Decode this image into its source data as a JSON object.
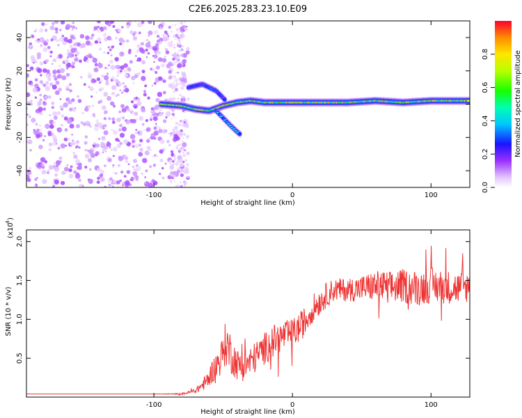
{
  "title": "C2E6.2025.283.23.10.E09",
  "chart_data": [
    {
      "type": "heatmap",
      "xlabel": "Height of straight line (km)",
      "ylabel": "Frequency (Hz)",
      "xlim": [
        -192,
        128
      ],
      "ylim": [
        -50,
        50
      ],
      "x_ticks": [
        -100,
        0,
        100
      ],
      "x_tick_labels": [
        "-100",
        "0",
        "100"
      ],
      "y_ticks": [
        -40,
        -20,
        0,
        20,
        40
      ],
      "y_tick_labels": [
        "-40",
        "-20",
        "0",
        "20",
        "40"
      ],
      "colorbar": {
        "label": "Normalized spectral amplitude",
        "range": [
          0,
          1
        ],
        "ticks": [
          0.0,
          0.2,
          0.4,
          0.6,
          0.8
        ],
        "tick_labels": [
          "0.0",
          "0.2",
          "0.4",
          "0.6",
          "0.8"
        ]
      },
      "features": [
        {
          "name": "noise",
          "x_range": [
            -192,
            -75
          ],
          "freq_range": [
            -50,
            50
          ],
          "amplitude": 0.1
        },
        {
          "name": "main-band",
          "points": [
            [
              -95,
              0
            ],
            [
              -80,
              -1
            ],
            [
              -70,
              -3
            ],
            [
              -60,
              -4
            ],
            [
              -50,
              -1
            ],
            [
              -45,
              0
            ],
            [
              -40,
              1
            ],
            [
              -30,
              2
            ],
            [
              -20,
              1
            ],
            [
              0,
              1
            ],
            [
              20,
              1
            ],
            [
              40,
              1
            ],
            [
              60,
              2
            ],
            [
              80,
              1
            ],
            [
              100,
              2
            ],
            [
              128,
              2
            ]
          ],
          "amplitude": 0.75
        },
        {
          "name": "upper-branch",
          "points": [
            [
              -75,
              10
            ],
            [
              -65,
              12
            ],
            [
              -55,
              8
            ],
            [
              -48,
              2
            ]
          ],
          "amplitude": 0.3
        },
        {
          "name": "lower-branch",
          "points": [
            [
              -55,
              -4
            ],
            [
              -48,
              -10
            ],
            [
              -42,
              -15
            ],
            [
              -38,
              -18
            ]
          ],
          "amplitude": 0.45
        }
      ]
    },
    {
      "type": "line",
      "xlabel": "Height of straight line (km)",
      "ylabel": "SNR (10 * v/v)",
      "y_multiplier_label": "(x10",
      "y_multiplier_exp": "4",
      "xlim": [
        -192,
        128
      ],
      "ylim": [
        0,
        21500
      ],
      "x_ticks": [
        -100,
        0,
        100
      ],
      "x_tick_labels": [
        "-100",
        "0",
        "100"
      ],
      "y_ticks": [
        5000,
        10000,
        15000,
        20000
      ],
      "y_tick_labels": [
        "0.5",
        "1.0",
        "1.5",
        "2.0"
      ],
      "series": [
        {
          "name": "SNR",
          "color": "#ee3333",
          "x": [
            -192,
            -150,
            -100,
            -80,
            -70,
            -62,
            -58,
            -52,
            -48,
            -44,
            -40,
            -36,
            -30,
            -24,
            -18,
            -12,
            -6,
            0,
            5,
            10,
            15,
            20,
            25,
            30,
            40,
            50,
            60,
            70,
            80,
            90,
            100,
            110,
            120,
            128
          ],
          "y": [
            400,
            400,
            400,
            400,
            800,
            2000,
            3300,
            4800,
            7000,
            5500,
            4200,
            4000,
            4600,
            5600,
            6600,
            7400,
            7900,
            8200,
            8900,
            10000,
            11500,
            12300,
            13200,
            13800,
            13800,
            14000,
            14300,
            14100,
            14300,
            14000,
            14400,
            14200,
            14000,
            14200
          ],
          "noise": [
            0,
            0,
            0,
            100,
            300,
            1000,
            1500,
            2000,
            3000,
            2600,
            2000,
            2000,
            2000,
            2000,
            2100,
            2100,
            1900,
            1900,
            1900,
            1900,
            1800,
            1700,
            1600,
            1500,
            1500,
            1700,
            2000,
            2100,
            2200,
            2300,
            2300,
            2200,
            2100,
            2000
          ]
        }
      ]
    }
  ]
}
